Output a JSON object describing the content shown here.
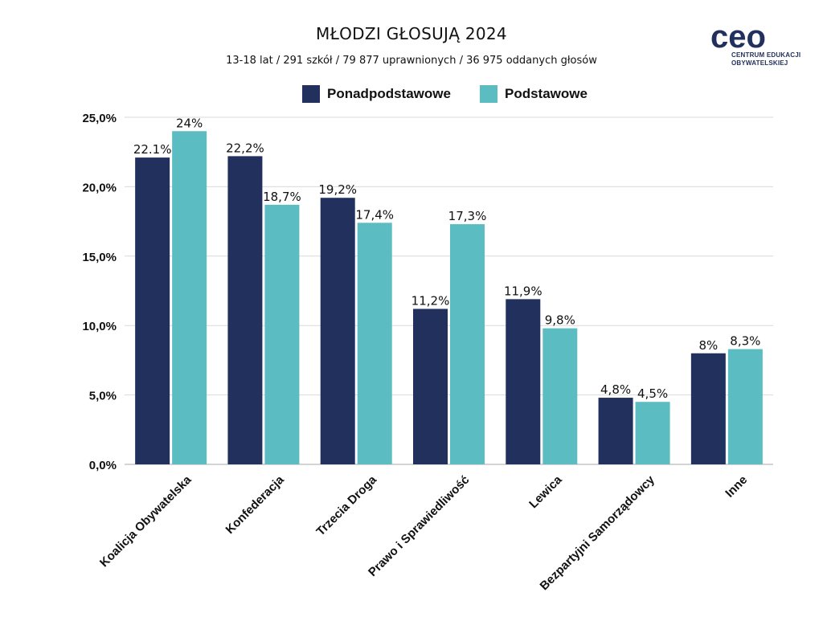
{
  "header": {
    "title": "MŁODZI GŁOSUJĄ 2024",
    "subtitle": "13-18 lat / 291 szkół / 79 877 uprawnionych / 36 975 oddanych głosów"
  },
  "logo": {
    "text": "ceo",
    "line1": "CENTRUM EDUKACJI",
    "line2": "OBYWATELSKIEJ"
  },
  "colors": {
    "series1": "#22305e",
    "series2": "#5bbcc1",
    "grid": "#d9d9d9",
    "axis": "#aaaaaa",
    "text": "#111111"
  },
  "chart_data": {
    "type": "bar",
    "title": "MŁODZI GŁOSUJĄ 2024",
    "subtitle": "13-18 lat / 291 szkół / 79 877 uprawnionych / 36 975 oddanych głosów",
    "categories": [
      "Koalicja Obywatelska",
      "Konfederacja",
      "Trzecia Droga",
      "Prawo i Sprawiedliwość",
      "Lewica",
      "Bezpartyjni Samorządowcy",
      "Inne"
    ],
    "series": [
      {
        "name": "Ponadpodstawowe",
        "values": [
          22.1,
          22.2,
          19.2,
          11.2,
          11.9,
          4.8,
          8.0
        ],
        "labels": [
          "22.1%",
          "22,2%",
          "19,2%",
          "11,2%",
          "11,9%",
          "4,8%",
          "8%"
        ]
      },
      {
        "name": "Podstawowe",
        "values": [
          24.0,
          18.7,
          17.4,
          17.3,
          9.8,
          4.5,
          8.3
        ],
        "labels": [
          "24%",
          "18,7%",
          "17,4%",
          "17,3%",
          "9,8%",
          "4,5%",
          "8,3%"
        ]
      }
    ],
    "yticks": [
      0,
      5,
      10,
      15,
      20,
      25
    ],
    "ytick_labels": [
      "0,0%",
      "5,0%",
      "10,0%",
      "15,0%",
      "20,0%",
      "25,0%"
    ],
    "ylim": [
      0,
      25
    ],
    "xlabel": "",
    "ylabel": "",
    "grid": true,
    "legend_position": "top"
  }
}
